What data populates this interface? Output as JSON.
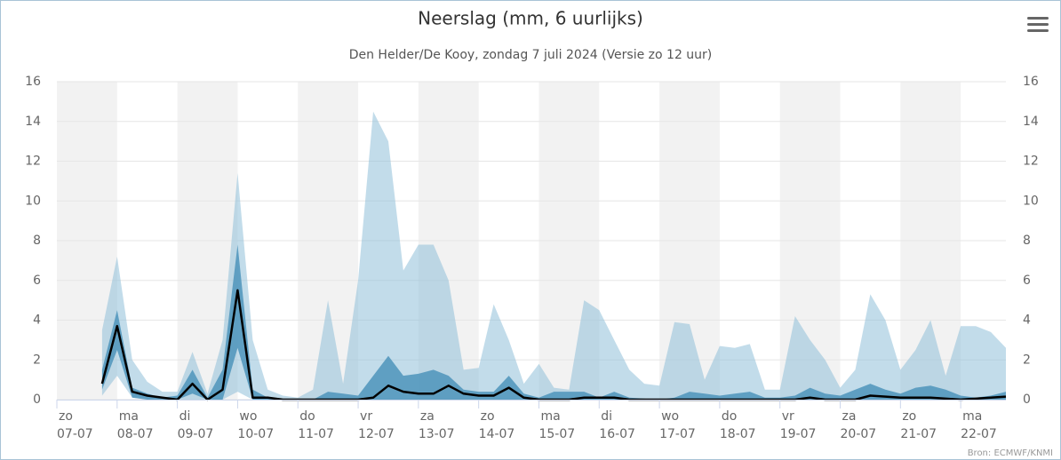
{
  "chart_data": {
    "type": "arearange",
    "title": "Neerslag (mm, 6 uurlijks)",
    "subtitle": "Den Helder/De Kooy, zondag 7 juli 2024 (Versie zo 12 uur)",
    "credits": "Bron: ECMWF/KNMI",
    "grid": true,
    "xlim": [
      0,
      15.75
    ],
    "ylim": [
      0,
      16
    ],
    "yticks": [
      0,
      2,
      4,
      6,
      8,
      10,
      12,
      14,
      16
    ],
    "xticks": [
      {
        "value": 0,
        "label": [
          "zo",
          "07-07"
        ]
      },
      {
        "value": 1,
        "label": [
          "ma",
          "08-07"
        ]
      },
      {
        "value": 2,
        "label": [
          "di",
          "09-07"
        ]
      },
      {
        "value": 3,
        "label": [
          "wo",
          "10-07"
        ]
      },
      {
        "value": 4,
        "label": [
          "do",
          "11-07"
        ]
      },
      {
        "value": 5,
        "label": [
          "vr",
          "12-07"
        ]
      },
      {
        "value": 6,
        "label": [
          "za",
          "13-07"
        ]
      },
      {
        "value": 7,
        "label": [
          "zo",
          "14-07"
        ]
      },
      {
        "value": 8,
        "label": [
          "ma",
          "15-07"
        ]
      },
      {
        "value": 9,
        "label": [
          "di",
          "16-07"
        ]
      },
      {
        "value": 10,
        "label": [
          "wo",
          "17-07"
        ]
      },
      {
        "value": 11,
        "label": [
          "do",
          "18-07"
        ]
      },
      {
        "value": 12,
        "label": [
          "vr",
          "19-07"
        ]
      },
      {
        "value": 13,
        "label": [
          "za",
          "20-07"
        ]
      },
      {
        "value": 14,
        "label": [
          "zo",
          "21-07"
        ]
      },
      {
        "value": 15,
        "label": [
          "ma",
          "22-07"
        ]
      }
    ],
    "x": [
      0.75,
      1,
      1.25,
      1.5,
      1.75,
      2,
      2.25,
      2.5,
      2.75,
      3,
      3.25,
      3.5,
      3.75,
      4,
      4.25,
      4.5,
      4.75,
      5,
      5.25,
      5.5,
      5.75,
      6,
      6.25,
      6.5,
      6.75,
      7,
      7.25,
      7.5,
      7.75,
      8,
      8.25,
      8.5,
      8.75,
      9,
      9.25,
      9.5,
      9.75,
      10,
      10.25,
      10.5,
      10.75,
      11,
      11.25,
      11.5,
      11.75,
      12,
      12.25,
      12.5,
      12.75,
      13,
      13.25,
      13.5,
      13.75,
      14,
      14.25,
      14.5,
      14.75,
      15,
      15.25,
      15.5,
      15.75
    ],
    "series": [
      {
        "type": "arearange",
        "color": "#8fc0d8",
        "low": [
          0.2,
          1.2,
          0.1,
          0,
          0,
          0,
          0,
          0,
          0,
          0.4,
          0,
          0,
          0,
          0,
          0,
          0,
          0,
          0,
          0,
          0,
          0,
          0,
          0,
          0,
          0,
          0,
          0,
          0,
          0,
          0,
          0,
          0,
          0,
          0,
          0,
          0,
          0,
          0,
          0,
          0,
          0,
          0,
          0,
          0,
          0,
          0,
          0,
          0,
          0,
          0,
          0,
          0,
          0,
          0,
          0,
          0,
          0,
          0,
          0,
          0,
          0
        ],
        "high": [
          3.5,
          7.2,
          2,
          0.9,
          0.4,
          0.4,
          2.4,
          0.3,
          3,
          11.4,
          3,
          0.5,
          0.2,
          0.1,
          0.5,
          5,
          0.8,
          6,
          14.5,
          13,
          6.5,
          7.8,
          7.8,
          6,
          1.5,
          1.6,
          4.8,
          3,
          0.8,
          1.8,
          0.6,
          0.5,
          5,
          4.5,
          3,
          1.5,
          0.8,
          0.7,
          3.9,
          3.8,
          1,
          2.7,
          2.6,
          2.8,
          0.5,
          0.5,
          4.2,
          3,
          2,
          0.6,
          1.5,
          5.3,
          4,
          1.5,
          2.5,
          4,
          1.2,
          3.7,
          3.7,
          3.4,
          2.6
        ]
      },
      {
        "type": "arearange",
        "color": "#4d94bb",
        "low": [
          0.5,
          2.5,
          0.1,
          0,
          0,
          0,
          0.3,
          0,
          0,
          2.6,
          0,
          0,
          0,
          0,
          0,
          0,
          0,
          0,
          0,
          0,
          0,
          0,
          0,
          0,
          0,
          0,
          0,
          0,
          0,
          0,
          0,
          0,
          0,
          0,
          0,
          0,
          0,
          0,
          0,
          0,
          0,
          0,
          0,
          0,
          0,
          0,
          0,
          0,
          0,
          0,
          0,
          0,
          0,
          0,
          0,
          0,
          0,
          0,
          0,
          0,
          0
        ],
        "high": [
          1.5,
          4.5,
          0.6,
          0.3,
          0.1,
          0.2,
          1.5,
          0.1,
          1.5,
          7.8,
          0.5,
          0.1,
          0,
          0,
          0,
          0.4,
          0.3,
          0.2,
          1.2,
          2.2,
          1.2,
          1.3,
          1.5,
          1.2,
          0.5,
          0.4,
          0.4,
          1.2,
          0.3,
          0.1,
          0.4,
          0.4,
          0.4,
          0.1,
          0.4,
          0.1,
          0.05,
          0,
          0.1,
          0.4,
          0.3,
          0.2,
          0.3,
          0.4,
          0.1,
          0.1,
          0.2,
          0.6,
          0.3,
          0.2,
          0.5,
          0.8,
          0.5,
          0.3,
          0.6,
          0.7,
          0.5,
          0.2,
          0.1,
          0.2,
          0.4
        ]
      },
      {
        "type": "line",
        "color": "#000000",
        "values": [
          0.8,
          3.7,
          0.4,
          0.2,
          0.1,
          0,
          0.8,
          0,
          0.5,
          5.5,
          0.1,
          0.1,
          0,
          0,
          0,
          0,
          0,
          0,
          0.1,
          0.7,
          0.4,
          0.3,
          0.3,
          0.7,
          0.3,
          0.2,
          0.2,
          0.6,
          0.1,
          0,
          0,
          0,
          0.1,
          0.1,
          0.1,
          0,
          0,
          0,
          0,
          0,
          0,
          0,
          0,
          0,
          0,
          0,
          0,
          0.1,
          0,
          0,
          0,
          0.2,
          0.15,
          0.1,
          0.1,
          0.1,
          0.05,
          0,
          0.05,
          0.1,
          0.15
        ]
      }
    ]
  }
}
